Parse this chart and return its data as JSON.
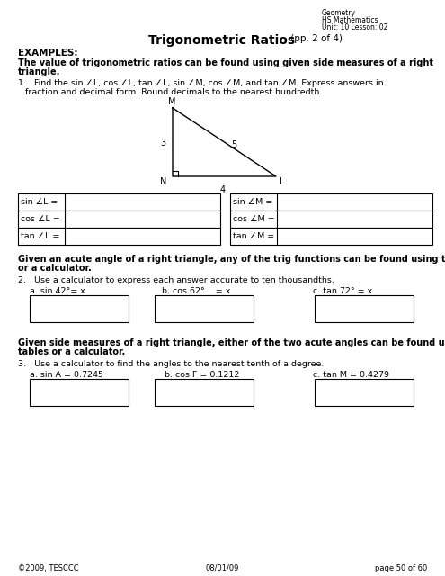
{
  "title_bold": "Trigonometric Ratios",
  "title_normal": " (pp. 2 of 4)",
  "header_right": [
    "Geometry",
    "HS Mathematics",
    "Unit: 10 Lesson: 02"
  ],
  "examples_label": "EXAMPLES:",
  "bold_line1": "The value of trigonometric ratios can be found using given side measures of a right",
  "bold_line2": "triangle.",
  "q1_line1": "1.   Find the sin ∠L, cos ∠L, tan ∠L, sin ∠M, cos ∠M, and tan ∠M. Express answers in",
  "q1_line2": "     fraction and decimal form. Round decimals to the nearest hundredth.",
  "labels_left": [
    "sin ∠L =",
    "cos ∠L =",
    "tan ∠L ="
  ],
  "labels_right": [
    "sin ∠M =",
    "cos ∠M =",
    "tan ∠M ="
  ],
  "bold2_line1": "Given an acute angle of a right triangle, any of the trig functions can be found using tables",
  "bold2_line2": "or a calculator.",
  "q2_text": "2.   Use a calculator to express each answer accurate to ten thousandths.",
  "q2_parts": [
    "a. sin 42°= x",
    "b. cos 62°    = x",
    "c. tan 72° = x"
  ],
  "bold3_line1": "Given side measures of a right triangle, either of the two acute angles can be found using",
  "bold3_line2": "tables or a calculator.",
  "q3_text": "3.   Use a calculator to find the angles to the nearest tenth of a degree.",
  "q3_parts": [
    "a. sin A = 0.7245",
    "b. cos F = 0.1212",
    "c. tan M = 0.4279"
  ],
  "footer_left": "©2009, TESCCC",
  "footer_center": "08/01/09",
  "footer_right": "page 50 of 60",
  "bg_color": "#ffffff"
}
